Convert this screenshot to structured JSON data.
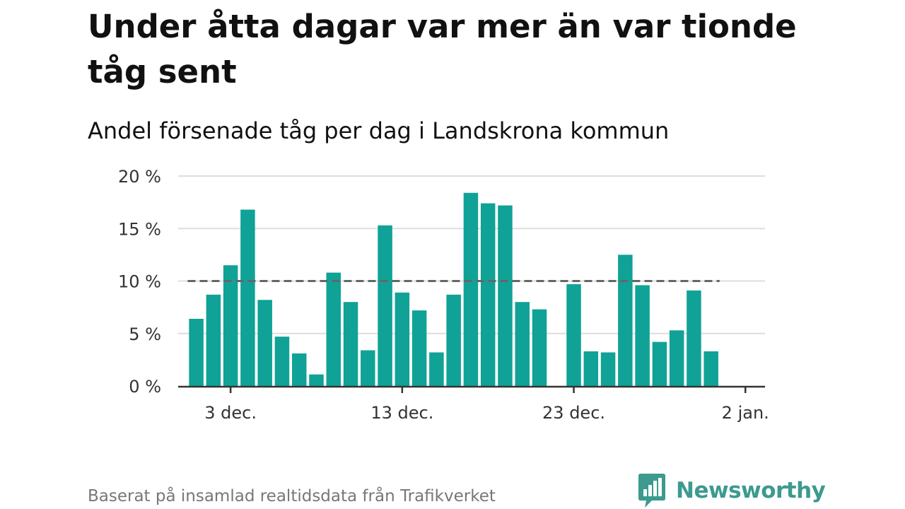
{
  "title": "Under åtta dagar var mer än var tionde tåg sent",
  "subtitle": "Andel försenade tåg per dag i Landskrona kommun",
  "footer": "Baserat på insamlad realtidsdata från Trafikverket",
  "brand": {
    "name": "Newsworthy",
    "color": "#3c9a8f",
    "icon": "newsworthy-logo-icon"
  },
  "chart_data": {
    "type": "bar",
    "bar_color": "#10a296",
    "grid": true,
    "y_ticks": [
      {
        "value": 0,
        "label": "0 %"
      },
      {
        "value": 5,
        "label": "5 %"
      },
      {
        "value": 10,
        "label": "10 %"
      },
      {
        "value": 15,
        "label": "15 %"
      },
      {
        "value": 20,
        "label": "20 %"
      }
    ],
    "ylim": [
      0,
      20
    ],
    "x_ticks": [
      {
        "day": 3,
        "label": "3 dec."
      },
      {
        "day": 13,
        "label": "13 dec."
      },
      {
        "day": 23,
        "label": "23 dec."
      },
      {
        "day": 33,
        "label": "2 jan."
      }
    ],
    "reference_line": {
      "value": 10,
      "from_day": 0.5,
      "to_day": 31.5,
      "color": "#666666",
      "style": "dashed"
    },
    "series": [
      {
        "values": [
          {
            "date": "2024-12-01",
            "value": 6.4
          },
          {
            "date": "2024-12-02",
            "value": 8.7
          },
          {
            "date": "2024-12-03",
            "value": 11.5
          },
          {
            "date": "2024-12-04",
            "value": 16.8
          },
          {
            "date": "2024-12-05",
            "value": 8.2
          },
          {
            "date": "2024-12-06",
            "value": 4.7
          },
          {
            "date": "2024-12-07",
            "value": 3.1
          },
          {
            "date": "2024-12-08",
            "value": 1.1
          },
          {
            "date": "2024-12-09",
            "value": 10.8
          },
          {
            "date": "2024-12-10",
            "value": 8.0
          },
          {
            "date": "2024-12-11",
            "value": 3.4
          },
          {
            "date": "2024-12-12",
            "value": 15.3
          },
          {
            "date": "2024-12-13",
            "value": 8.9
          },
          {
            "date": "2024-12-14",
            "value": 7.2
          },
          {
            "date": "2024-12-15",
            "value": 3.2
          },
          {
            "date": "2024-12-16",
            "value": 8.7
          },
          {
            "date": "2024-12-17",
            "value": 18.4
          },
          {
            "date": "2024-12-18",
            "value": 17.4
          },
          {
            "date": "2024-12-19",
            "value": 17.2
          },
          {
            "date": "2024-12-20",
            "value": 8.0
          },
          {
            "date": "2024-12-21",
            "value": 7.3
          },
          {
            "date": "2024-12-22",
            "value": null
          },
          {
            "date": "2024-12-23",
            "value": 9.7
          },
          {
            "date": "2024-12-24",
            "value": 3.3
          },
          {
            "date": "2024-12-25",
            "value": 3.2
          },
          {
            "date": "2024-12-26",
            "value": 12.5
          },
          {
            "date": "2024-12-27",
            "value": 9.6
          },
          {
            "date": "2024-12-28",
            "value": 4.2
          },
          {
            "date": "2024-12-29",
            "value": 5.3
          },
          {
            "date": "2024-12-30",
            "value": 9.1
          },
          {
            "date": "2024-12-31",
            "value": 3.3
          }
        ]
      }
    ]
  }
}
